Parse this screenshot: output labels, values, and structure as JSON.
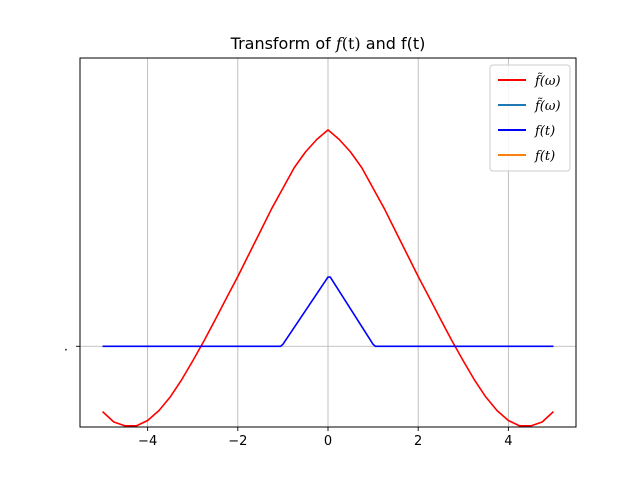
{
  "chart_data": {
    "type": "line",
    "title": "Transform of f(t) and f(t)",
    "title_parts": {
      "prefix": "Transform of ",
      "italic": "f",
      "italic_arg": "(t)",
      "suffix": " and f(t)"
    },
    "xlabel": "",
    "ylabel": "",
    "xlim": [
      -5.5,
      5.5
    ],
    "ylim": [
      -0.42,
      1.5
    ],
    "x_ticks": [
      -4,
      -2,
      0,
      2,
      4
    ],
    "x_tick_labels": [
      "−4",
      "−2",
      "0",
      "2",
      "4"
    ],
    "y_ticks": [
      0
    ],
    "y_tick_labels": [
      "."
    ],
    "grid": true,
    "legend_position": "top-right",
    "series": [
      {
        "name": "f̃(ω)",
        "color": "#ff0000",
        "x": [
          -5,
          -4.75,
          -4.5,
          -4.25,
          -4,
          -3.75,
          -3.5,
          -3.25,
          -3,
          -2.75,
          -2.5,
          -2.25,
          -2,
          -1.75,
          -1.5,
          -1.25,
          -1,
          -0.75,
          -0.5,
          -0.25,
          0,
          0.25,
          0.5,
          0.75,
          1,
          1.25,
          1.5,
          1.75,
          2,
          2.25,
          2.5,
          2.75,
          3,
          3.25,
          3.5,
          3.75,
          4,
          4.25,
          4.5,
          4.75,
          5
        ],
        "y": [
          -0.34,
          -0.394,
          -0.414,
          -0.414,
          -0.386,
          -0.335,
          -0.264,
          -0.176,
          -0.076,
          0.028,
          0.139,
          0.252,
          0.363,
          0.481,
          0.598,
          0.716,
          0.822,
          0.929,
          1.011,
          1.076,
          1.126,
          1.076,
          1.011,
          0.929,
          0.822,
          0.716,
          0.598,
          0.481,
          0.363,
          0.252,
          0.139,
          0.028,
          -0.076,
          -0.176,
          -0.264,
          -0.335,
          -0.386,
          -0.414,
          -0.414,
          -0.394,
          -0.34
        ]
      },
      {
        "name": "f̃(ω)",
        "color": "#1f77b4",
        "x": [],
        "y": []
      },
      {
        "name": "f(t)",
        "color": "#0000ff",
        "x": [
          -5,
          -1.05,
          -1,
          0,
          0.05,
          1,
          1.05,
          5
        ],
        "y": [
          0,
          0,
          0.01,
          0.36,
          0.36,
          0.01,
          0,
          0
        ]
      },
      {
        "name": "f(t)",
        "color": "#ff7f0e",
        "x": [],
        "y": []
      }
    ]
  }
}
